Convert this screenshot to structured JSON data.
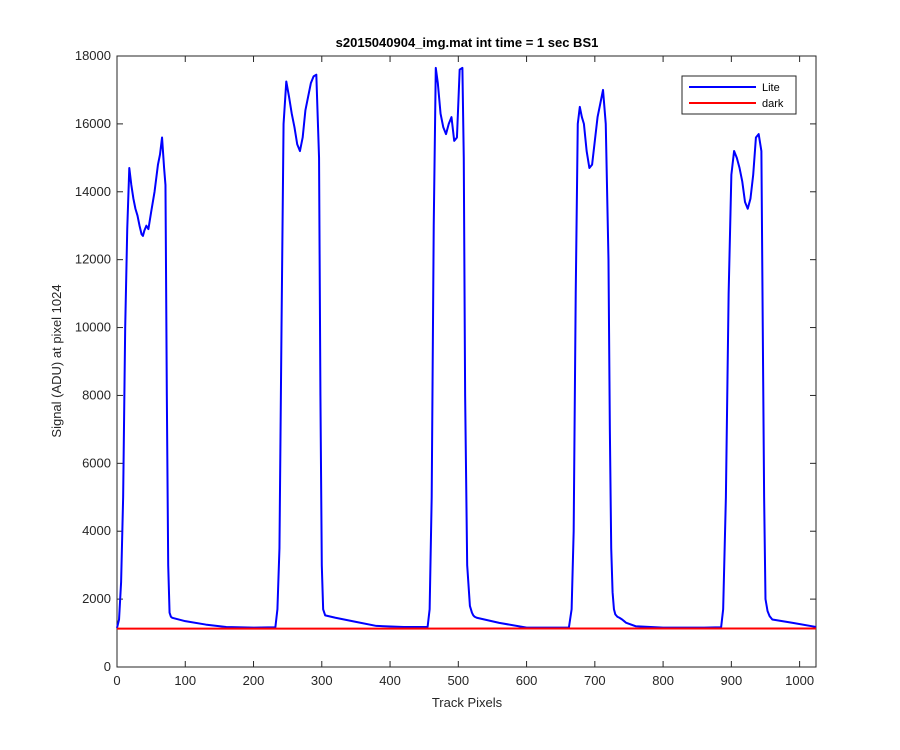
{
  "chart_data": {
    "type": "line",
    "title": "s2015040904_img.mat int time = 1 sec   BS1",
    "xlabel": "Track Pixels",
    "ylabel": "Signal (ADU) at pixel 1024",
    "xlim": [
      0,
      1024
    ],
    "ylim": [
      0,
      18000
    ],
    "xticks": [
      0,
      100,
      200,
      300,
      400,
      500,
      600,
      700,
      800,
      900,
      1000
    ],
    "yticks": [
      0,
      2000,
      4000,
      6000,
      8000,
      10000,
      12000,
      14000,
      16000,
      18000
    ],
    "grid": false,
    "legend": {
      "position": "top-right",
      "entries": [
        "Lite",
        "dark"
      ]
    },
    "series": [
      {
        "name": "Lite",
        "color": "#0000ff",
        "x": [
          0,
          3,
          6,
          9,
          12,
          15,
          18,
          21,
          24,
          27,
          30,
          33,
          36,
          38,
          40,
          43,
          46,
          50,
          55,
          60,
          63,
          66,
          69,
          71,
          73,
          75,
          77,
          79,
          81,
          100,
          130,
          160,
          200,
          232,
          235,
          238,
          241,
          244,
          248,
          252,
          256,
          260,
          264,
          268,
          272,
          276,
          280,
          284,
          288,
          292,
          296,
          298,
          300,
          302,
          305,
          320,
          350,
          380,
          420,
          455,
          458,
          461,
          464,
          467,
          470,
          474,
          478,
          482,
          486,
          490,
          494,
          498,
          502,
          506,
          508,
          510,
          513,
          517,
          520,
          522,
          524,
          527,
          560,
          600,
          662,
          666,
          669,
          672,
          675,
          678,
          681,
          684,
          688,
          692,
          696,
          700,
          704,
          708,
          712,
          716,
          720,
          722,
          724,
          726,
          728,
          730,
          733,
          736,
          740,
          743,
          746,
          760,
          800,
          860,
          885,
          888,
          892,
          896,
          900,
          904,
          908,
          912,
          916,
          920,
          924,
          928,
          932,
          936,
          940,
          944,
          946,
          948,
          950,
          953,
          956,
          960,
          990,
          1024
        ],
        "y": [
          1150,
          1400,
          2500,
          5000,
          10000,
          12900,
          14700,
          14200,
          13800,
          13500,
          13300,
          13000,
          12750,
          12700,
          12850,
          13000,
          12900,
          13400,
          14000,
          14800,
          15100,
          15600,
          14700,
          14200,
          8000,
          3000,
          1600,
          1480,
          1450,
          1350,
          1250,
          1180,
          1160,
          1170,
          1700,
          3500,
          10000,
          16000,
          17250,
          16800,
          16300,
          15900,
          15400,
          15200,
          15600,
          16400,
          16800,
          17200,
          17400,
          17450,
          15000,
          8000,
          3000,
          1700,
          1520,
          1450,
          1330,
          1210,
          1180,
          1180,
          1700,
          5000,
          13000,
          17650,
          17200,
          16300,
          15900,
          15700,
          16000,
          16200,
          15500,
          15600,
          17600,
          17650,
          15000,
          8000,
          3000,
          1800,
          1600,
          1520,
          1480,
          1450,
          1300,
          1160,
          1160,
          1700,
          4000,
          11000,
          16000,
          16500,
          16200,
          16000,
          15200,
          14700,
          14800,
          15500,
          16200,
          16600,
          17000,
          16000,
          12000,
          7000,
          3500,
          2200,
          1700,
          1550,
          1480,
          1450,
          1400,
          1350,
          1300,
          1200,
          1160,
          1160,
          1170,
          1700,
          5000,
          11000,
          14500,
          15200,
          15000,
          14700,
          14300,
          13700,
          13500,
          13800,
          14500,
          15600,
          15700,
          15200,
          10000,
          5000,
          2000,
          1650,
          1500,
          1400,
          1300,
          1180
        ]
      },
      {
        "name": "dark",
        "color": "#ff0000",
        "x": [
          0,
          1024
        ],
        "y": [
          1130,
          1135
        ]
      }
    ]
  }
}
